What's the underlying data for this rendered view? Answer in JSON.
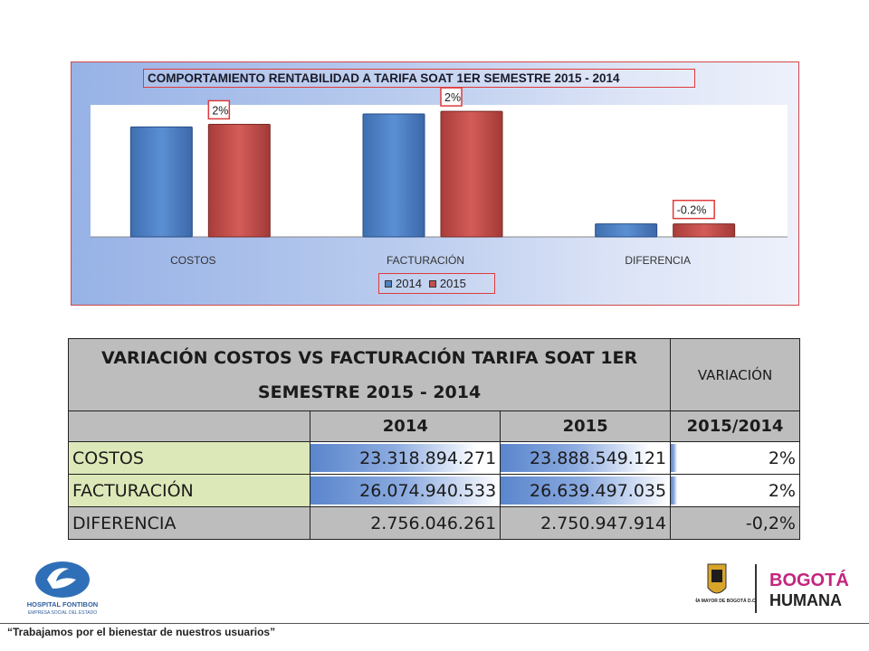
{
  "chart_data": {
    "type": "bar",
    "title": "COMPORTAMIENTO RENTABILIDAD A TARIFA SOAT 1ER SEMESTRE 2015 - 2014",
    "categories": [
      "COSTOS",
      "FACTURACIÓN",
      "DIFERENCIA"
    ],
    "series": [
      {
        "name": "2014",
        "values": [
          23318894271,
          26074940533,
          2756046261
        ]
      },
      {
        "name": "2015",
        "values": [
          23888549121,
          26639497035,
          2750947914
        ]
      }
    ],
    "data_labels": [
      "2%",
      "2%",
      "-0.2%"
    ],
    "ylim": [
      0,
      28000000000
    ],
    "legend_position": "bottom",
    "grid": false,
    "colors": {
      "2014": "#4f81bd",
      "2015": "#c0504d"
    }
  },
  "table": {
    "title": "VARIACIÓN COSTOS VS FACTURACIÓN TARIFA SOAT 1ER SEMESTRE 2015 - 2014",
    "variation_header": "VARIACIÓN",
    "year_headers": [
      "2014",
      "2015",
      "2015/2014"
    ],
    "rows": [
      {
        "label": "COSTOS",
        "v2014": "23.318.894.271",
        "v2015": "23.888.549.121",
        "var": "2%",
        "bar2014": 0.88,
        "bar2015": 0.88,
        "barVar": 0.05
      },
      {
        "label": "FACTURACIÓN",
        "v2014": "26.074.940.533",
        "v2015": "26.639.497.035",
        "var": "2%",
        "bar2014": 1.0,
        "bar2015": 1.0,
        "barVar": 0.05
      },
      {
        "label": "DIFERENCIA",
        "v2014": "2.756.046.261",
        "v2015": "2.750.947.914",
        "var": "-0,2%"
      }
    ]
  },
  "footer": {
    "slogan": "“Trabajamos por el bienestar de nuestros usuarios”",
    "left_logo_text": "HOSPITAL FONTIBON",
    "left_logo_subtext": "EMPRESA SOCIAL DEL ESTADO",
    "right_logo_alcaldia": "ALCALDÍA MAYOR DE BOGOTÁ D.C.",
    "right_logo_brand": "BOGOTÁ",
    "right_logo_brand2": "HUMANA"
  }
}
